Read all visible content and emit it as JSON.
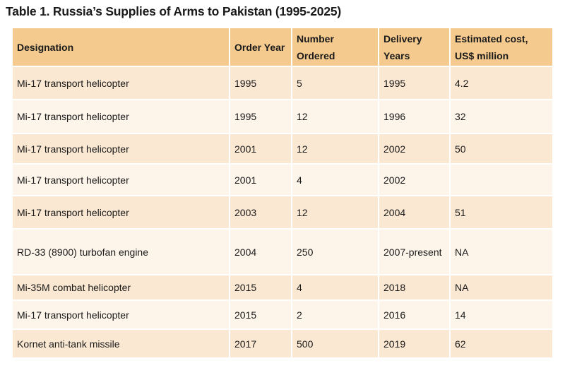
{
  "title": "Table 1. Russia’s Supplies of Arms to Pakistan (1995-2025)",
  "headers": [
    "Designation",
    "Order Year",
    "Number Ordered",
    "Delivery Years",
    "Estimated cost, US$ million"
  ],
  "rows": [
    [
      "Mi-17 transport helicopter",
      "1995",
      "5",
      "1995",
      "4.2"
    ],
    [
      "Mi-17 transport helicopter",
      "1995",
      "12",
      "1996",
      "32"
    ],
    [
      "Mi-17 transport helicopter",
      "2001",
      "12",
      "2002",
      "50"
    ],
    [
      "Mi-17 transport helicopter",
      "2001",
      "4",
      "2002",
      ""
    ],
    [
      "Mi-17 transport helicopter",
      "2003",
      "12",
      "2004",
      "51"
    ],
    [
      "RD-33 (8900) turbofan engine",
      "2004",
      "250",
      "2007-present",
      "NA"
    ],
    [
      "Mi-35M combat helicopter",
      "2015",
      "4",
      "2018",
      "NA"
    ],
    [
      "Mi-17 transport helicopter",
      "2015",
      "2",
      "2016",
      "14"
    ],
    [
      "Kornet anti-tank missile",
      "2017",
      "500",
      "2019",
      "62"
    ]
  ]
}
